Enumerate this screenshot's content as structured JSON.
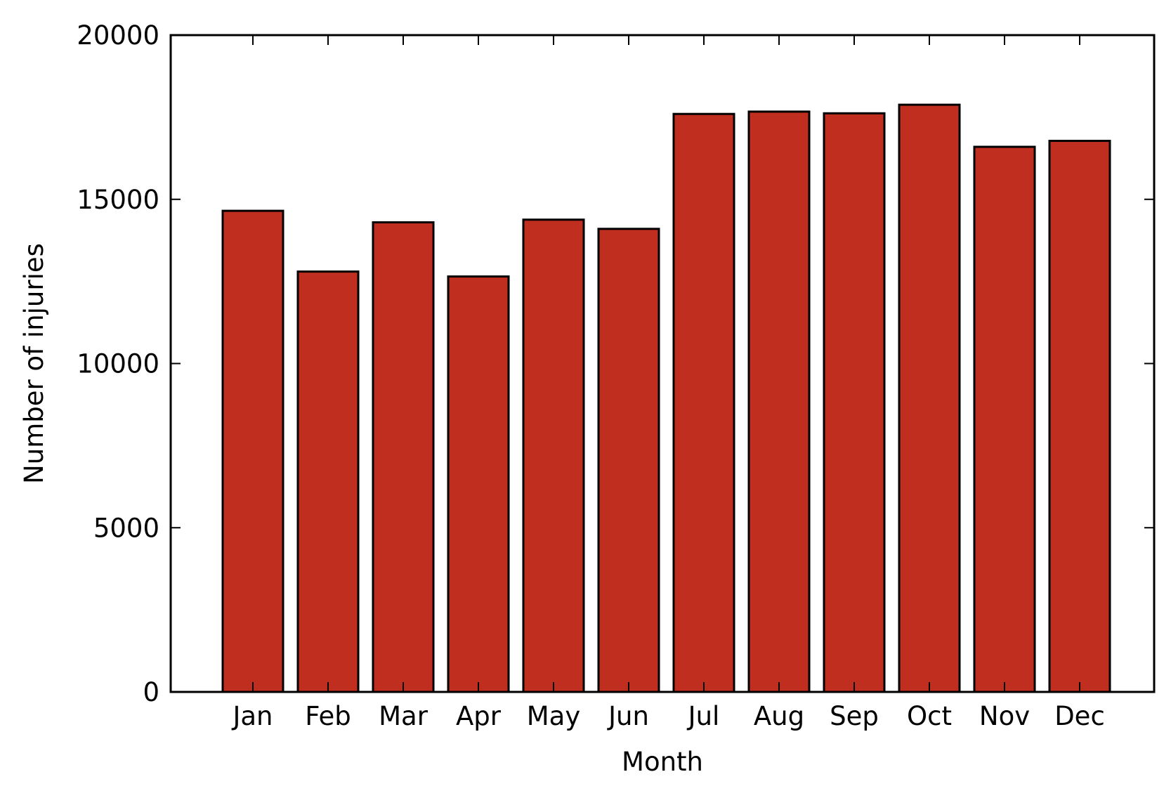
{
  "chart_data": {
    "type": "bar",
    "categories": [
      "Jan",
      "Feb",
      "Mar",
      "Apr",
      "May",
      "Jun",
      "Jul",
      "Aug",
      "Sep",
      "Oct",
      "Nov",
      "Dec"
    ],
    "values": [
      14650,
      12800,
      14300,
      12650,
      14380,
      14100,
      17600,
      17670,
      17620,
      17880,
      16600,
      16780
    ],
    "title": "",
    "xlabel": "Month",
    "ylabel": "Number of injuries",
    "ylim": [
      0,
      20000
    ],
    "yticks": [
      0,
      5000,
      10000,
      15000,
      20000
    ],
    "ytick_labels": [
      "0",
      "5000",
      "10000",
      "15000",
      "20000"
    ],
    "grid": false,
    "legend": "none",
    "colors": {
      "bar_fill": "#bf2e1e",
      "bar_edge": "#000000",
      "axis": "#000000"
    }
  }
}
